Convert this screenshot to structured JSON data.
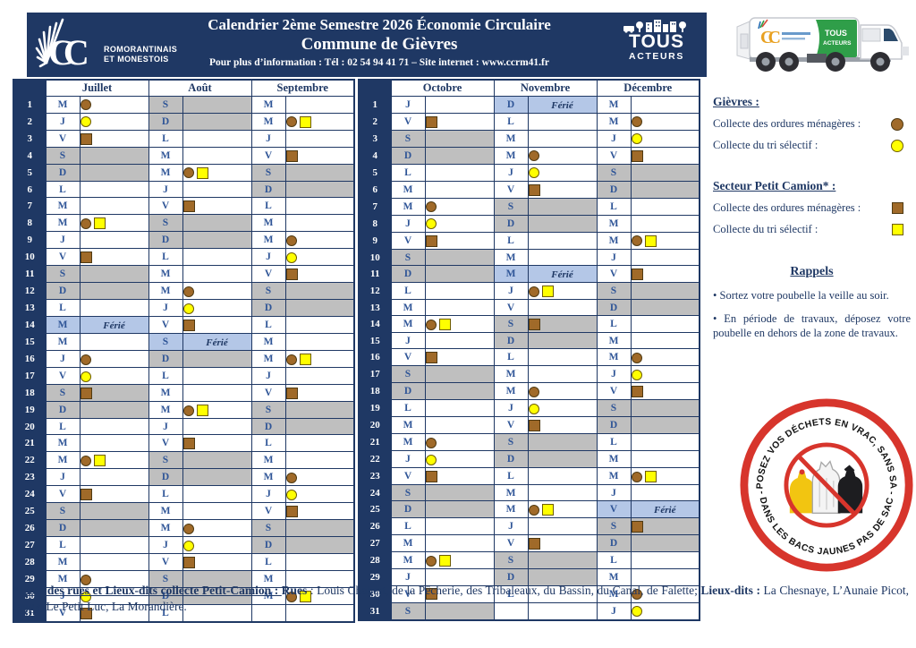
{
  "header": {
    "banner": {
      "title_line1": "Calendrier 2ème Semestre 2026 Économie Circulaire",
      "title_line2": "Commune de Gièvres",
      "info_line": "Pour plus d’information : Tél : 02 54 94 41 71 – Site internet : www.ccrm41.fr"
    },
    "cc_logo": {
      "monogram": "CC",
      "org_line1": "ROMORANTINAIS",
      "org_line2": "ET MONESTOIS"
    },
    "tous_acteurs_logo": {
      "line1": "TOUS",
      "line2": "ACTEURS"
    },
    "truck_panel": {
      "line1": "TOUS",
      "line2": "ACTEURS"
    }
  },
  "calendar": {
    "ferie_label": "Férié",
    "row_count": 31,
    "left_month_indexes": [
      0,
      1,
      2
    ],
    "right_month_indexes": [
      3,
      4,
      5
    ],
    "months": [
      {
        "name": "Juillet",
        "days": [
          [
            "M",
            "",
            "oc"
          ],
          [
            "J",
            "",
            "tc"
          ],
          [
            "V",
            "",
            "os"
          ],
          [
            "S",
            "we",
            ""
          ],
          [
            "D",
            "we",
            ""
          ],
          [
            "L",
            "",
            ""
          ],
          [
            "M",
            "",
            ""
          ],
          [
            "M",
            "",
            "oc,ts"
          ],
          [
            "J",
            "",
            ""
          ],
          [
            "V",
            "",
            "os"
          ],
          [
            "S",
            "we",
            ""
          ],
          [
            "D",
            "we",
            ""
          ],
          [
            "L",
            "",
            ""
          ],
          [
            "M",
            "fer",
            ""
          ],
          [
            "M",
            "",
            ""
          ],
          [
            "J",
            "",
            "oc"
          ],
          [
            "V",
            "",
            "tc"
          ],
          [
            "S",
            "we",
            "os"
          ],
          [
            "D",
            "we",
            ""
          ],
          [
            "L",
            "",
            ""
          ],
          [
            "M",
            "",
            ""
          ],
          [
            "M",
            "",
            "oc,ts"
          ],
          [
            "J",
            "",
            ""
          ],
          [
            "V",
            "",
            "os"
          ],
          [
            "S",
            "we",
            ""
          ],
          [
            "D",
            "we",
            ""
          ],
          [
            "L",
            "",
            ""
          ],
          [
            "M",
            "",
            ""
          ],
          [
            "M",
            "",
            "oc"
          ],
          [
            "J",
            "",
            "tc"
          ],
          [
            "V",
            "",
            "os"
          ]
        ]
      },
      {
        "name": "Août",
        "days": [
          [
            "S",
            "we",
            ""
          ],
          [
            "D",
            "we",
            ""
          ],
          [
            "L",
            "",
            ""
          ],
          [
            "M",
            "",
            ""
          ],
          [
            "M",
            "",
            "oc,ts"
          ],
          [
            "J",
            "",
            ""
          ],
          [
            "V",
            "",
            "os"
          ],
          [
            "S",
            "we",
            ""
          ],
          [
            "D",
            "we",
            ""
          ],
          [
            "L",
            "",
            ""
          ],
          [
            "M",
            "",
            ""
          ],
          [
            "M",
            "",
            "oc"
          ],
          [
            "J",
            "",
            "tc"
          ],
          [
            "V",
            "",
            "os"
          ],
          [
            "S",
            "fer",
            ""
          ],
          [
            "D",
            "we",
            ""
          ],
          [
            "L",
            "",
            ""
          ],
          [
            "M",
            "",
            ""
          ],
          [
            "M",
            "",
            "oc,ts"
          ],
          [
            "J",
            "",
            ""
          ],
          [
            "V",
            "",
            "os"
          ],
          [
            "S",
            "we",
            ""
          ],
          [
            "D",
            "we",
            ""
          ],
          [
            "L",
            "",
            ""
          ],
          [
            "M",
            "",
            ""
          ],
          [
            "M",
            "",
            "oc"
          ],
          [
            "J",
            "",
            "tc"
          ],
          [
            "V",
            "",
            "os"
          ],
          [
            "S",
            "we",
            ""
          ],
          [
            "D",
            "we",
            ""
          ],
          [
            "L",
            "",
            ""
          ]
        ]
      },
      {
        "name": "Septembre",
        "days": [
          [
            "M",
            "",
            ""
          ],
          [
            "M",
            "",
            "oc,ts"
          ],
          [
            "J",
            "",
            ""
          ],
          [
            "V",
            "",
            "os"
          ],
          [
            "S",
            "we",
            ""
          ],
          [
            "D",
            "we",
            ""
          ],
          [
            "L",
            "",
            ""
          ],
          [
            "M",
            "",
            ""
          ],
          [
            "M",
            "",
            "oc"
          ],
          [
            "J",
            "",
            "tc"
          ],
          [
            "V",
            "",
            "os"
          ],
          [
            "S",
            "we",
            ""
          ],
          [
            "D",
            "we",
            ""
          ],
          [
            "L",
            "",
            ""
          ],
          [
            "M",
            "",
            ""
          ],
          [
            "M",
            "",
            "oc,ts"
          ],
          [
            "J",
            "",
            ""
          ],
          [
            "V",
            "",
            "os"
          ],
          [
            "S",
            "we",
            ""
          ],
          [
            "D",
            "we",
            ""
          ],
          [
            "L",
            "",
            ""
          ],
          [
            "M",
            "",
            ""
          ],
          [
            "M",
            "",
            "oc"
          ],
          [
            "J",
            "",
            "tc"
          ],
          [
            "V",
            "",
            "os"
          ],
          [
            "S",
            "we",
            ""
          ],
          [
            "D",
            "we",
            ""
          ],
          [
            "L",
            "",
            ""
          ],
          [
            "M",
            "",
            ""
          ],
          [
            "M",
            "",
            "oc,ts"
          ],
          null
        ]
      },
      {
        "name": "Octobre",
        "days": [
          [
            "J",
            "",
            ""
          ],
          [
            "V",
            "",
            "os"
          ],
          [
            "S",
            "we",
            ""
          ],
          [
            "D",
            "we",
            ""
          ],
          [
            "L",
            "",
            ""
          ],
          [
            "M",
            "",
            ""
          ],
          [
            "M",
            "",
            "oc"
          ],
          [
            "J",
            "",
            "tc"
          ],
          [
            "V",
            "",
            "os"
          ],
          [
            "S",
            "we",
            ""
          ],
          [
            "D",
            "we",
            ""
          ],
          [
            "L",
            "",
            ""
          ],
          [
            "M",
            "",
            ""
          ],
          [
            "M",
            "",
            "oc,ts"
          ],
          [
            "J",
            "",
            ""
          ],
          [
            "V",
            "",
            "os"
          ],
          [
            "S",
            "we",
            ""
          ],
          [
            "D",
            "we",
            ""
          ],
          [
            "L",
            "",
            ""
          ],
          [
            "M",
            "",
            ""
          ],
          [
            "M",
            "",
            "oc"
          ],
          [
            "J",
            "",
            "tc"
          ],
          [
            "V",
            "",
            "os"
          ],
          [
            "S",
            "we",
            ""
          ],
          [
            "D",
            "we",
            ""
          ],
          [
            "L",
            "",
            ""
          ],
          [
            "M",
            "",
            ""
          ],
          [
            "M",
            "",
            "oc,ts"
          ],
          [
            "J",
            "",
            ""
          ],
          [
            "V",
            "",
            "os"
          ],
          [
            "S",
            "we",
            ""
          ]
        ]
      },
      {
        "name": "Novembre",
        "days": [
          [
            "D",
            "fer",
            ""
          ],
          [
            "L",
            "",
            ""
          ],
          [
            "M",
            "",
            ""
          ],
          [
            "M",
            "",
            "oc"
          ],
          [
            "J",
            "",
            "tc"
          ],
          [
            "V",
            "",
            "os"
          ],
          [
            "S",
            "we",
            ""
          ],
          [
            "D",
            "we",
            ""
          ],
          [
            "L",
            "",
            ""
          ],
          [
            "M",
            "",
            ""
          ],
          [
            "M",
            "fer",
            ""
          ],
          [
            "J",
            "",
            "oc,ts"
          ],
          [
            "V",
            "",
            ""
          ],
          [
            "S",
            "we",
            "os"
          ],
          [
            "D",
            "we",
            ""
          ],
          [
            "L",
            "",
            ""
          ],
          [
            "M",
            "",
            ""
          ],
          [
            "M",
            "",
            "oc"
          ],
          [
            "J",
            "",
            "tc"
          ],
          [
            "V",
            "",
            "os"
          ],
          [
            "S",
            "we",
            ""
          ],
          [
            "D",
            "we",
            ""
          ],
          [
            "L",
            "",
            ""
          ],
          [
            "M",
            "",
            ""
          ],
          [
            "M",
            "",
            "oc,ts"
          ],
          [
            "J",
            "",
            ""
          ],
          [
            "V",
            "",
            "os"
          ],
          [
            "S",
            "we",
            ""
          ],
          [
            "D",
            "we",
            ""
          ],
          [
            "L",
            "",
            ""
          ],
          null
        ]
      },
      {
        "name": "Décembre",
        "days": [
          [
            "M",
            "",
            ""
          ],
          [
            "M",
            "",
            "oc"
          ],
          [
            "J",
            "",
            "tc"
          ],
          [
            "V",
            "",
            "os"
          ],
          [
            "S",
            "we",
            ""
          ],
          [
            "D",
            "we",
            ""
          ],
          [
            "L",
            "",
            ""
          ],
          [
            "M",
            "",
            ""
          ],
          [
            "M",
            "",
            "oc,ts"
          ],
          [
            "J",
            "",
            ""
          ],
          [
            "V",
            "",
            "os"
          ],
          [
            "S",
            "we",
            ""
          ],
          [
            "D",
            "we",
            ""
          ],
          [
            "L",
            "",
            ""
          ],
          [
            "M",
            "",
            ""
          ],
          [
            "M",
            "",
            "oc"
          ],
          [
            "J",
            "",
            "tc"
          ],
          [
            "V",
            "",
            "os"
          ],
          [
            "S",
            "we",
            ""
          ],
          [
            "D",
            "we",
            ""
          ],
          [
            "L",
            "",
            ""
          ],
          [
            "M",
            "",
            ""
          ],
          [
            "M",
            "",
            "oc,ts"
          ],
          [
            "J",
            "",
            ""
          ],
          [
            "V",
            "fer",
            ""
          ],
          [
            "S",
            "we",
            "os"
          ],
          [
            "D",
            "we",
            ""
          ],
          [
            "L",
            "",
            ""
          ],
          [
            "M",
            "",
            ""
          ],
          [
            "M",
            "",
            "oc"
          ],
          [
            "J",
            "",
            "tc"
          ]
        ]
      }
    ]
  },
  "legend": {
    "sections": [
      {
        "title": "Gièvres :",
        "items": [
          {
            "label": "Collecte des ordures ménagères :",
            "icon": "oc"
          },
          {
            "label": "Collecte du tri sélectif :",
            "icon": "tc"
          }
        ]
      },
      {
        "title": "Secteur Petit Camion* :",
        "items": [
          {
            "label": "Collecte des ordures ménagères :",
            "icon": "os"
          },
          {
            "label": "Collecte du tri sélectif :",
            "icon": "ts"
          }
        ]
      }
    ]
  },
  "rappels": {
    "title": "Rappels",
    "bullets": [
      "Sortez votre poubelle la veille au soir.",
      "En période de travaux, déposez votre poubelle en dehors de la zone de travaux."
    ]
  },
  "sticker": {
    "arc_top": "DÉPOSEZ VOS DÉCHETS EN VRAC, SANS SAC !",
    "arc_bottom": "- DANS LES BACS JAUNES PAS DE SAC -"
  },
  "footnote": {
    "segments": [
      {
        "text": "*Liste des rues et Lieux-dits collecte Petit-Camion : ",
        "bold": true,
        "underline": true
      },
      {
        "text": "Rues",
        "bold": true,
        "underline": false
      },
      {
        "text": " : Louis Chabert, de la Pêcherie, des Tribaleaux, du Bassin, du Canal, de Falette; ",
        "bold": false,
        "underline": false
      },
      {
        "text": "Lieux-dits :",
        "bold": true,
        "underline": false
      },
      {
        "text": " La Chesnaye, L’Aunaie Picot, Jaugy, Le Petit Luc, La Morandière.",
        "bold": false,
        "underline": false
      }
    ]
  },
  "colors": {
    "navy": "#1f3864",
    "day_letter_blue": "#2f5597",
    "weekend_gray": "#bfbfbf",
    "ferie_blue": "#b4c7e7",
    "brown": "#a06a29",
    "yellow": "#ffff00",
    "sticker_red": "#d7352c",
    "truck_green": "#2f9e49"
  }
}
